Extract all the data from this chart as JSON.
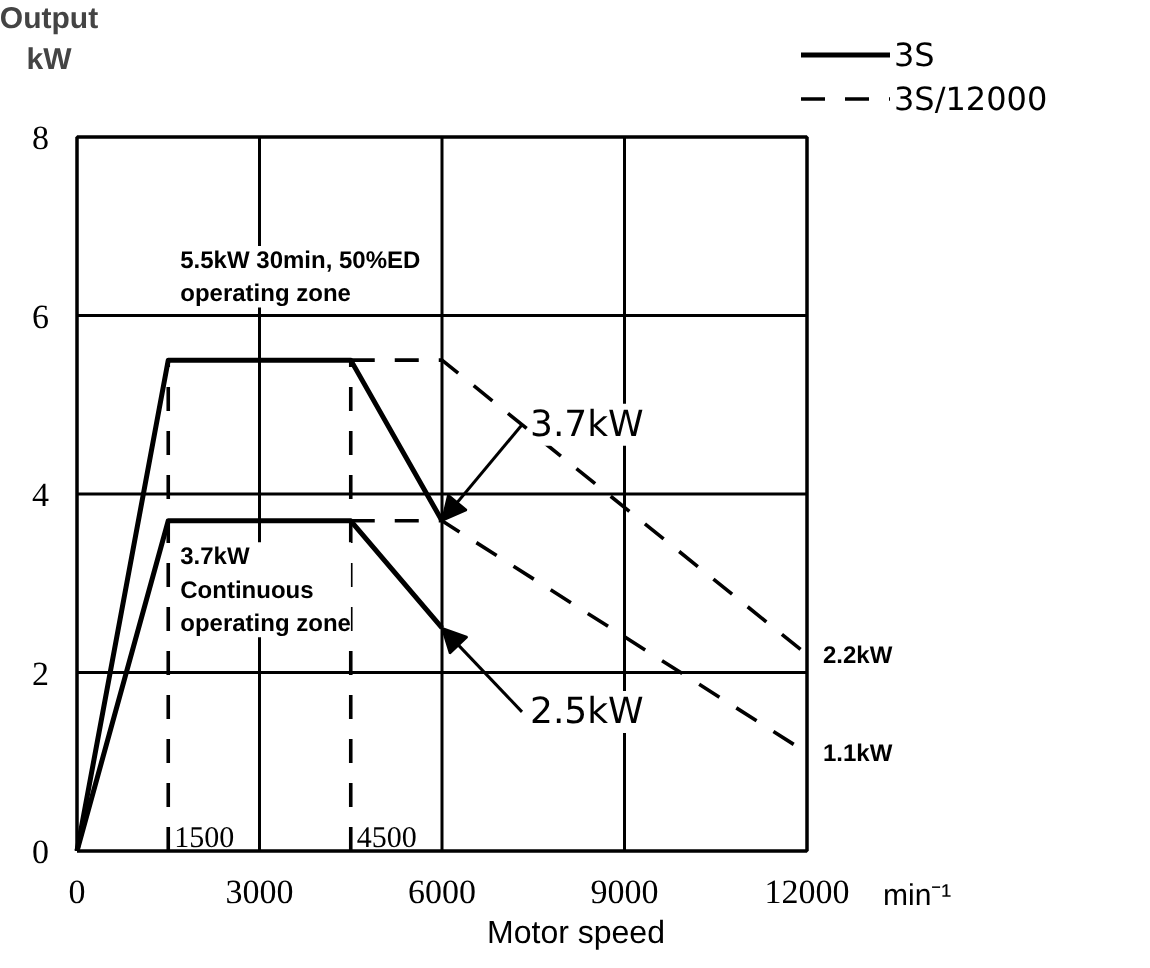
{
  "chart_data": {
    "type": "line",
    "xlabel": "Motor speed",
    "ylabel": "Output\nkW",
    "xlim": [
      0,
      12000
    ],
    "ylim": [
      0,
      8
    ],
    "xticks": [
      0,
      3000,
      6000,
      9000,
      12000
    ],
    "yticks": [
      0,
      2,
      4,
      6,
      8
    ],
    "grid": true,
    "legend": "top right",
    "marker": "none",
    "series": [
      {
        "name": "3S",
        "color": "#000000",
        "line_style": "solid",
        "x": [
          0,
          1500,
          4500,
          6000
        ],
        "values": [
          0,
          5.5,
          5.5,
          3.7
        ]
      },
      {
        "color": "#000000",
        "line_style": "solid",
        "x": [
          0,
          1500,
          4500,
          6000
        ],
        "values": [
          0,
          3.7,
          3.7,
          2.5
        ]
      },
      {
        "name": "3S/12000",
        "color": "#000000",
        "line_style": "dashed",
        "x": [
          4500,
          6000,
          12000
        ],
        "values": [
          5.5,
          5.5,
          2.2
        ]
      },
      {
        "color": "#000000",
        "line_style": "dashed",
        "x": [
          4500,
          6000,
          12000
        ],
        "values": [
          3.7,
          3.7,
          1.1
        ]
      },
      {
        "color": "#000000",
        "line_style": "dashed",
        "x": [
          1500,
          1500
        ],
        "values": [
          0,
          5.5
        ]
      },
      {
        "color": "#000000",
        "line_style": "dashed",
        "x": [
          4500,
          4500
        ],
        "values": [
          0,
          5.5
        ]
      }
    ],
    "annotations": [
      "5.5kW 30min, 50%ED\noperating zone",
      "3.7kW\nContinuous\noperating zone",
      "min⁻¹",
      {
        "text": "3.7kW",
        "x": 6000,
        "y": 3.7
      },
      {
        "text": "2.5kW",
        "x": 6000,
        "y": 2.5
      },
      {
        "text": "2.2kW",
        "x": 12000,
        "y": 2.2
      },
      {
        "text": "1.1kW",
        "x": 12000,
        "y": 1.1
      },
      {
        "text": "1500",
        "x": 1500,
        "y": 0
      },
      {
        "text": "4500",
        "x": 4500,
        "y": 0
      }
    ]
  }
}
